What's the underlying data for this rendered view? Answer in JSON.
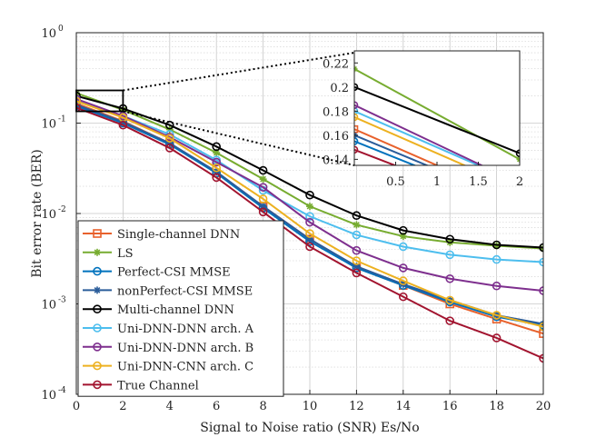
{
  "chart_data": {
    "type": "line",
    "yscale": "log",
    "xlabel": "Signal to Noise ratio (SNR) Es/No",
    "ylabel": "Bit error rate (BER)",
    "xlim": [
      0,
      20
    ],
    "ylim": [
      0.0001,
      1
    ],
    "xticks": [
      0,
      2,
      4,
      6,
      8,
      10,
      12,
      14,
      16,
      18,
      20
    ],
    "yticks": [
      {
        "value": 0.0001,
        "base": "10",
        "exp": "-4"
      },
      {
        "value": 0.001,
        "base": "10",
        "exp": "-3"
      },
      {
        "value": 0.01,
        "base": "10",
        "exp": "-2"
      },
      {
        "value": 0.1,
        "base": "10",
        "exp": "-1"
      },
      {
        "value": 1,
        "base": "10",
        "exp": "0"
      }
    ],
    "grid": true,
    "legend_location": "bottom-left",
    "x": [
      0,
      2,
      4,
      6,
      8,
      10,
      12,
      14,
      16,
      18,
      20
    ],
    "series": [
      {
        "name": "Single-channel DNN",
        "color": "#E8612C",
        "marker": "square",
        "values": [
          0.165,
          0.105,
          0.06,
          0.028,
          0.012,
          0.0052,
          0.0025,
          0.0016,
          0.001,
          0.00068,
          0.00047
        ]
      },
      {
        "name": "LS",
        "color": "#77AC30",
        "marker": "asterisk",
        "values": [
          0.215,
          0.14,
          0.085,
          0.047,
          0.024,
          0.012,
          0.0075,
          0.0056,
          0.0048,
          0.0044,
          0.0041
        ]
      },
      {
        "name": "Perfect-CSI MMSE",
        "color": "#0072BD",
        "marker": "circle",
        "values": [
          0.155,
          0.1,
          0.058,
          0.028,
          0.0115,
          0.0049,
          0.0025,
          0.0016,
          0.00105,
          0.00072,
          0.00058
        ]
      },
      {
        "name": "nonPerfect-CSI MMSE",
        "color": "#2A5C9A",
        "marker": "asterisk",
        "values": [
          0.16,
          0.103,
          0.06,
          0.029,
          0.012,
          0.0052,
          0.0026,
          0.00165,
          0.0011,
          0.00075,
          0.0006
        ]
      },
      {
        "name": "Multi-channel DNN",
        "color": "#000000",
        "marker": "circle",
        "values": [
          0.2,
          0.145,
          0.095,
          0.055,
          0.03,
          0.016,
          0.0095,
          0.0065,
          0.0052,
          0.0045,
          0.0042
        ]
      },
      {
        "name": "Uni-DNN-DNN arch. A",
        "color": "#4DBEEE",
        "marker": "circle",
        "values": [
          0.18,
          0.12,
          0.075,
          0.039,
          0.018,
          0.0093,
          0.0058,
          0.0043,
          0.0035,
          0.0031,
          0.0029
        ]
      },
      {
        "name": "Uni-DNN-DNN arch. B",
        "color": "#7E2F8E",
        "marker": "circle",
        "values": [
          0.185,
          0.12,
          0.07,
          0.037,
          0.0195,
          0.008,
          0.0039,
          0.0025,
          0.0019,
          0.00158,
          0.0014
        ]
      },
      {
        "name": "Uni-DNN-CNN arch. C",
        "color": "#EDB120",
        "marker": "circle",
        "values": [
          0.175,
          0.115,
          0.068,
          0.032,
          0.0145,
          0.006,
          0.003,
          0.0018,
          0.0011,
          0.00075,
          0.00056
        ]
      },
      {
        "name": "True Channel",
        "color": "#A2142F",
        "marker": "circle",
        "values": [
          0.148,
          0.095,
          0.053,
          0.025,
          0.0104,
          0.0043,
          0.0022,
          0.0012,
          0.00065,
          0.00042,
          0.00025
        ]
      }
    ],
    "inset": {
      "xlim": [
        0,
        2
      ],
      "ylim": [
        0.135,
        0.23
      ],
      "xticks": [
        "0.5",
        "1",
        "1.5",
        "2"
      ],
      "yticks": [
        "0.14",
        "0.16",
        "0.18",
        "0.2",
        "0.22"
      ]
    }
  }
}
